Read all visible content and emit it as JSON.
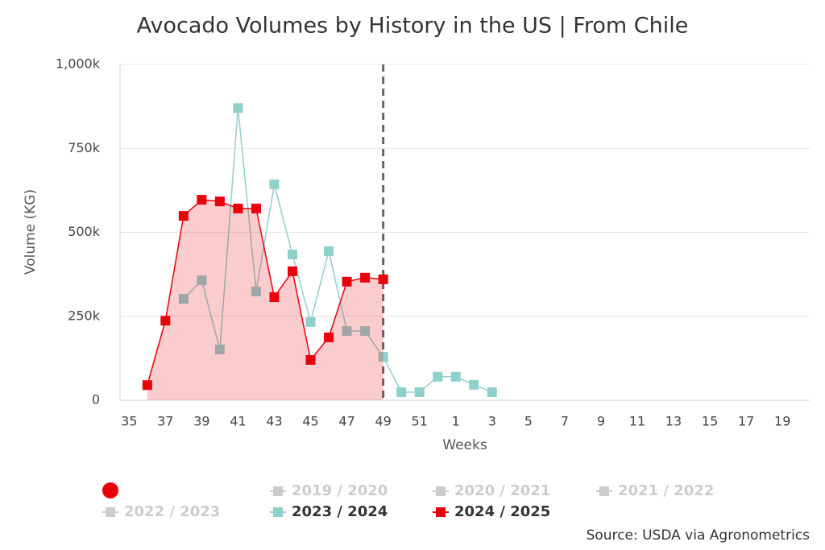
{
  "chart_data": {
    "type": "line",
    "title": "Avocado Volumes by History in the US | From Chile",
    "x_label": "Weeks",
    "y_label": "Volume (KG)",
    "source": "Source: USDA via Agronometrics",
    "categories": [
      "35",
      null,
      "37",
      null,
      "39",
      null,
      "41",
      null,
      "43",
      null,
      "45",
      null,
      "47",
      null,
      "49",
      null,
      "51",
      null,
      "1",
      null,
      "3",
      null,
      "5",
      null,
      "7",
      null,
      "9",
      null,
      "11",
      null,
      "13",
      null,
      "15",
      null,
      "17",
      null,
      "19",
      null
    ],
    "ylim": [
      0,
      1000000
    ],
    "yticks": [
      0,
      {
        "value": 250000,
        "label": "250k"
      },
      {
        "value": 500000,
        "label": "500k"
      },
      {
        "value": 750000,
        "label": "750k"
      },
      {
        "value": 1000000,
        "label": "1,000k"
      }
    ],
    "grid": true,
    "vline_category": 14,
    "series": [
      {
        "name": "2019 / 2020",
        "color": "#cccccc",
        "visible": false,
        "values": [
          null,
          null,
          null,
          null,
          null,
          null,
          null,
          null,
          null,
          null,
          null,
          null,
          null,
          null,
          null,
          null,
          null,
          null,
          null,
          null,
          null,
          null,
          null,
          null,
          null,
          null,
          null,
          null,
          null,
          null,
          null,
          null,
          null,
          null,
          null,
          null,
          null,
          null
        ]
      },
      {
        "name": "2020 / 2021",
        "color": "#cccccc",
        "visible": false,
        "values": [
          null,
          null,
          null,
          null,
          null,
          null,
          null,
          null,
          null,
          null,
          null,
          null,
          null,
          null,
          null,
          null,
          null,
          null,
          null,
          null,
          null,
          null,
          null,
          null,
          null,
          null,
          null,
          null,
          null,
          null,
          null,
          null,
          null,
          null,
          null,
          null,
          null,
          null
        ]
      },
      {
        "name": "2021 / 2022",
        "color": "#cccccc",
        "visible": false,
        "values": [
          null,
          null,
          null,
          null,
          null,
          null,
          null,
          null,
          null,
          null,
          null,
          null,
          null,
          null,
          null,
          null,
          null,
          null,
          null,
          null,
          null,
          null,
          null,
          null,
          null,
          null,
          null,
          null,
          null,
          null,
          null,
          null,
          null,
          null,
          null,
          null,
          null,
          null
        ]
      },
      {
        "name": "2022 / 2023",
        "color": "#cccccc",
        "visible": false,
        "values": [
          null,
          null,
          null,
          null,
          null,
          null,
          null,
          null,
          null,
          null,
          null,
          null,
          null,
          null,
          null,
          null,
          null,
          null,
          null,
          null,
          null,
          null,
          null,
          null,
          null,
          null,
          null,
          null,
          null,
          null,
          null,
          null,
          null,
          null,
          null,
          null,
          null,
          null
        ]
      },
      {
        "name": "2023 / 2024",
        "color": "#8fd0cd",
        "visible": true,
        "values": [
          null,
          null,
          null,
          302000,
          357000,
          151000,
          870000,
          324000,
          643000,
          434000,
          233000,
          444000,
          206000,
          206000,
          129000,
          24000,
          24000,
          70000,
          70000,
          46000,
          24000,
          null,
          null,
          null,
          null,
          null,
          null,
          null,
          null,
          null,
          null,
          null,
          null,
          null,
          null,
          null,
          null,
          null
        ]
      },
      {
        "name": "2024 / 2025",
        "color": "#e8000b",
        "visible": true,
        "fill": true,
        "values": [
          null,
          45000,
          237000,
          549000,
          597000,
          592000,
          571000,
          571000,
          307000,
          384000,
          120000,
          187000,
          353000,
          365000,
          360000,
          null,
          null,
          null,
          null,
          null,
          null,
          null,
          null,
          null,
          null,
          null,
          null,
          null,
          null,
          null,
          null,
          null,
          null,
          null,
          null,
          null,
          null,
          null
        ]
      }
    ]
  }
}
